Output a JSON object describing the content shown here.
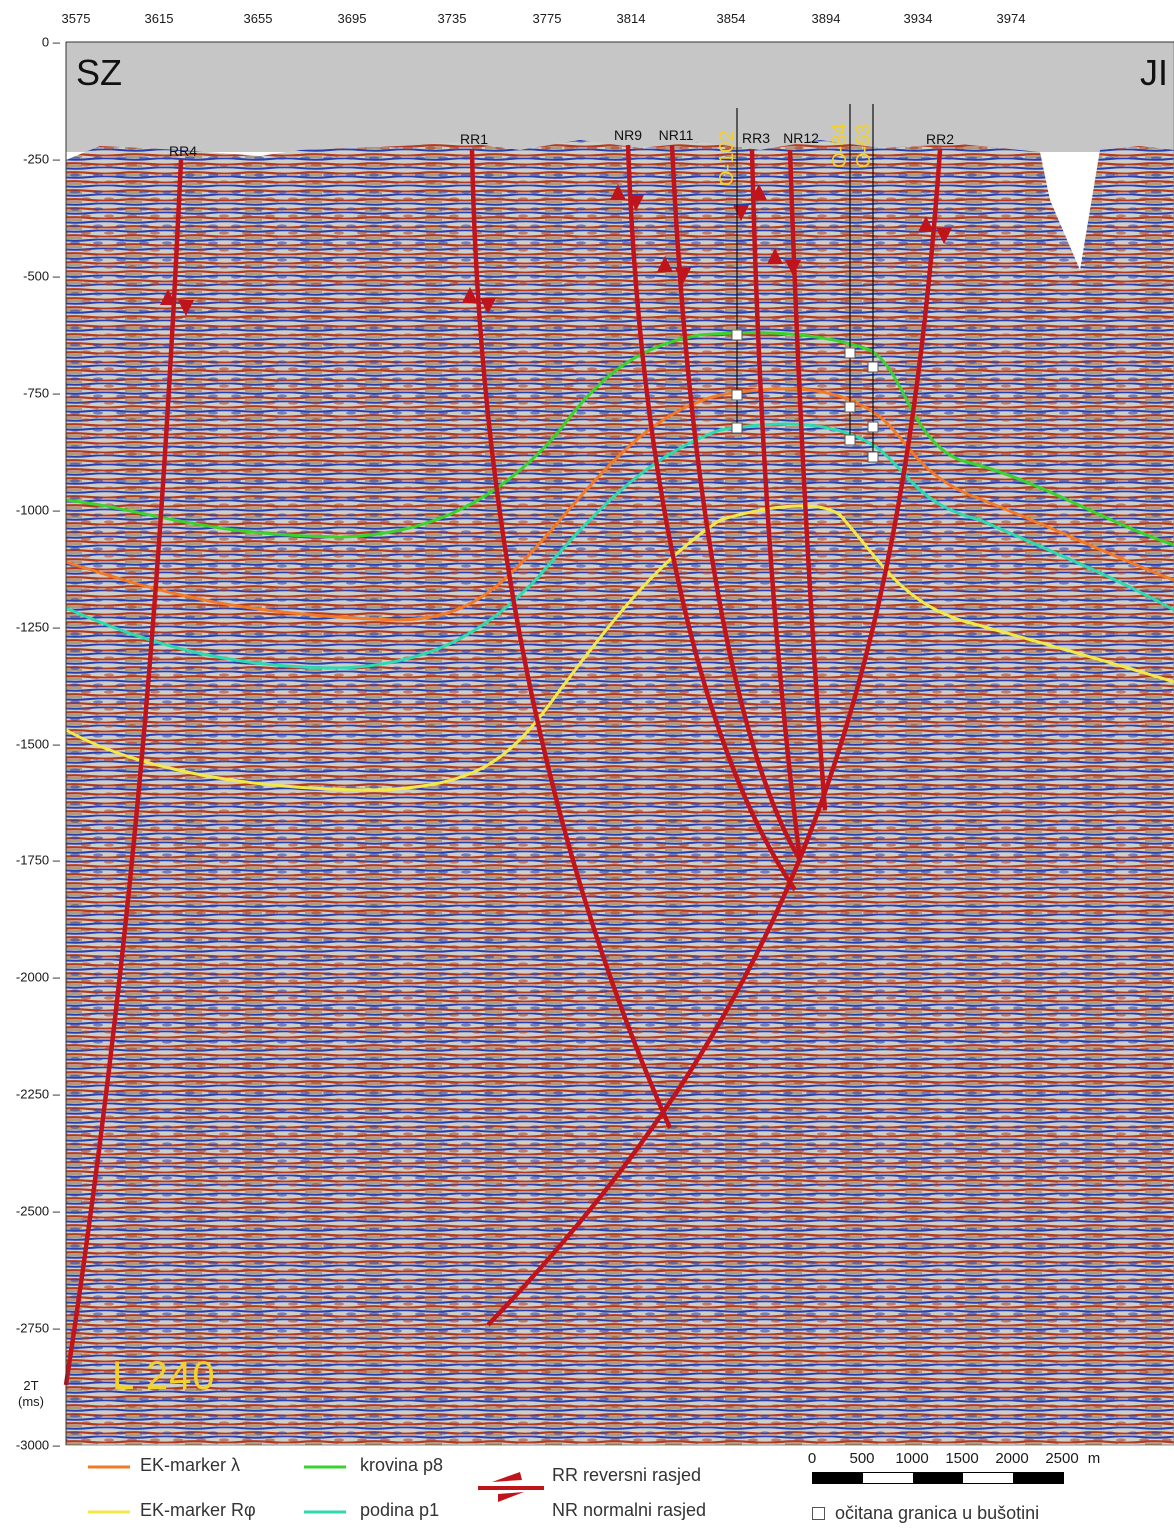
{
  "section": {
    "corner_left": "SZ",
    "corner_right": "JI",
    "line_label": "L 240",
    "vertical_axis_label": [
      "2T",
      "(ms)"
    ],
    "top_ticks": [
      "3575",
      "3615",
      "3655",
      "3695",
      "3735",
      "3775",
      "3814",
      "3854",
      "3894",
      "3934",
      "3974"
    ],
    "left_ticks": [
      "0",
      "-250",
      "-500",
      "-750",
      "-1000",
      "-1250",
      "-1500",
      "-1750",
      "-2000",
      "-2250",
      "-2500",
      "-2750",
      "-3000"
    ]
  },
  "faults": [
    {
      "label": "RR4",
      "type": "reverse"
    },
    {
      "label": "RR1",
      "type": "reverse"
    },
    {
      "label": "NR9",
      "type": "normal"
    },
    {
      "label": "NR11",
      "type": "normal"
    },
    {
      "label": "RR3",
      "type": "reverse"
    },
    {
      "label": "NR12",
      "type": "normal"
    },
    {
      "label": "RR2",
      "type": "reverse"
    }
  ],
  "wells": [
    "O-102",
    "O-84",
    "O-63"
  ],
  "legend": {
    "ek_lambda": "EK-marker λ",
    "ek_rphi": "EK-marker Rφ",
    "krovina": "krovina p8",
    "podina": "podina p1",
    "rr": "RR reversni rasjed",
    "nr": "NR normalni rasjed",
    "well_marker": "očitana granica u bušotini",
    "colors": {
      "ek_lambda": "#f07a2a",
      "ek_rphi": "#f2e84a",
      "krovina": "#3bd12e",
      "podina": "#2fd9b0",
      "fault": "#c0141c"
    }
  },
  "scale_bar": {
    "ticks": [
      "0",
      "500",
      "1000",
      "1500",
      "2000",
      "2500"
    ],
    "unit": "m"
  }
}
